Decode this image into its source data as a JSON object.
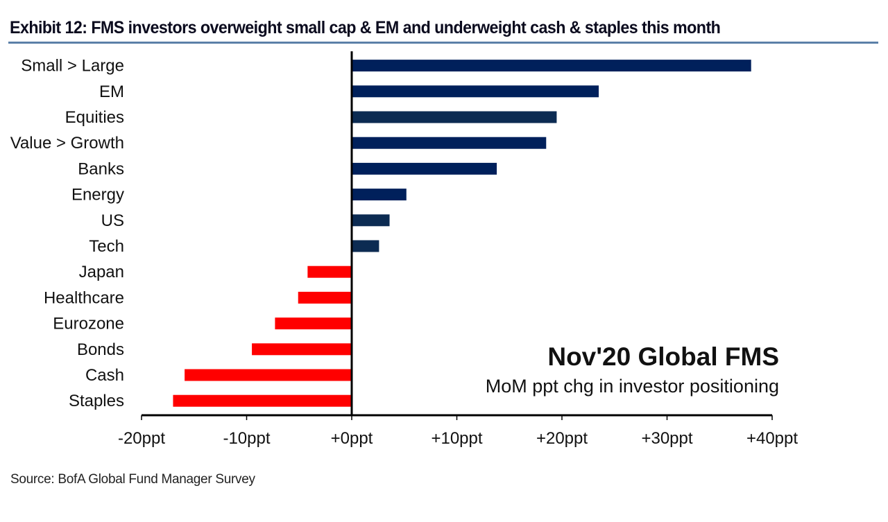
{
  "chart_data": {
    "type": "bar",
    "orientation": "horizontal",
    "title": "Exhibit 12: FMS investors overweight small cap & EM and underweight cash & staples this month",
    "xlabel": "",
    "ylabel": "",
    "categories": [
      "Small > Large",
      "EM",
      "Equities",
      "Value > Growth",
      "Banks",
      "Energy",
      "US",
      "Tech",
      "Japan",
      "Healthcare",
      "Eurozone",
      "Bonds",
      "Cash",
      "Staples"
    ],
    "values": [
      38.0,
      23.5,
      19.5,
      18.5,
      13.8,
      5.2,
      3.6,
      2.6,
      -4.2,
      -5.1,
      -7.3,
      -9.5,
      -15.9,
      -17.0
    ],
    "bar_colors": [
      "#00205b",
      "#00205b",
      "#0c2b52",
      "#00205b",
      "#00205b",
      "#00205b",
      "#0c2b52",
      "#0c2b52",
      "#ff0000",
      "#ff0000",
      "#ff0000",
      "#ff0000",
      "#ff0000",
      "#ff0000"
    ],
    "xlim": [
      -20,
      40
    ],
    "xticks": [
      -20,
      -10,
      0,
      10,
      20,
      30,
      40
    ],
    "xtick_labels": [
      "-20ppt",
      "-10ppt",
      "+0ppt",
      "+10ppt",
      "+20ppt",
      "+30ppt",
      "+40ppt"
    ],
    "grid": false,
    "annotations": [
      "Nov'20 Global FMS",
      "MoM ppt chg in investor positioning"
    ],
    "annotation_placement": "bottom-right",
    "source": "Source: BofA Global Fund Manager Survey"
  }
}
